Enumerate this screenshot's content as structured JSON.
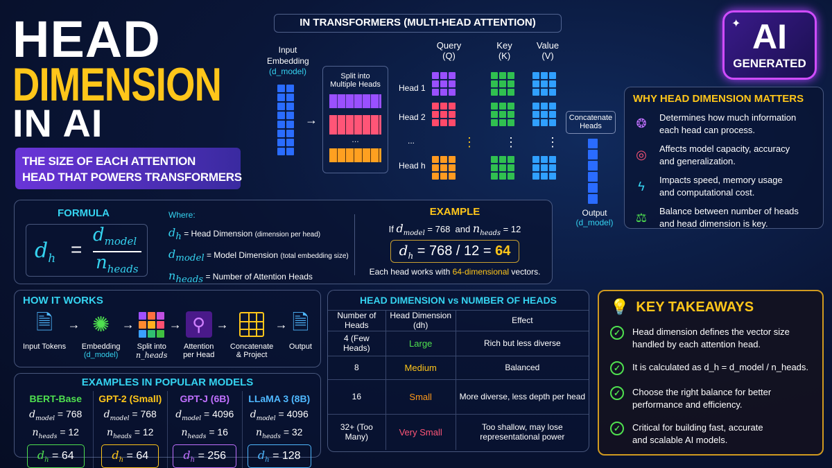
{
  "title": {
    "line1": "HEAD",
    "line2": "DIMENSION",
    "line3": "IN AI",
    "subtitle_line1": "THE SIZE OF EACH ATTENTION",
    "subtitle_line2": "HEAD THAT POWERS TRANSFORMERS"
  },
  "badge": {
    "line1": "AI",
    "line2": "GENERATED"
  },
  "transformer": {
    "header": "IN TRANSFORMERS (MULTI-HEAD ATTENTION)",
    "input_label_1": "Input",
    "input_label_2": "Embedding",
    "input_sub": "(d_model)",
    "split_1": "Split into",
    "split_2": "Multiple Heads",
    "heads": [
      "Head 1",
      "Head 2",
      "...",
      "Head h"
    ],
    "query": "Query",
    "query_sub": "(Q)",
    "key": "Key",
    "key_sub": "(K)",
    "value": "Value",
    "value_sub": "(V)",
    "concat_1": "Concatenate",
    "concat_2": "Heads",
    "output": "Output",
    "output_sub": "(d_model)",
    "ellipsis": "⋮"
  },
  "why": {
    "title": "WHY HEAD DIMENSION MATTERS",
    "items": [
      {
        "icon": "brain-icon",
        "l1": "Determines how much information",
        "l2": "each head can process."
      },
      {
        "icon": "target-icon",
        "l1": "Affects model capacity, accuracy",
        "l2": "and generalization."
      },
      {
        "icon": "lightning-icon",
        "l1": "Impacts speed, memory usage",
        "l2": "and computational cost."
      },
      {
        "icon": "balance-scale-icon",
        "l1": "Balance between number of heads",
        "l2": "and head dimension is key."
      }
    ]
  },
  "formula": {
    "title": "FORMULA",
    "lhs": "d",
    "lhs_sub": "h",
    "eq": "=",
    "num": "d",
    "num_sub": "model",
    "den": "n",
    "den_sub": "heads",
    "where": "Where:",
    "defs": [
      {
        "sym": "d",
        "sub": "h",
        "text": "= Head Dimension",
        "note": "(dimension per head)"
      },
      {
        "sym": "d",
        "sub": "model",
        "text": "= Model Dimension",
        "note": "(total embedding size)"
      },
      {
        "sym": "n",
        "sub": "heads",
        "text": "= Number of Attention Heads",
        "note": ""
      }
    ]
  },
  "example": {
    "title": "EXAMPLE",
    "if": "If",
    "dmodel_val": "= 768",
    "and": "and",
    "nheads_val": "= 12",
    "calc": "= 768 / 12 =",
    "result": "64",
    "note_pre": "Each head works with",
    "note_hl": "64-dimensional",
    "note_post": "vectors."
  },
  "how": {
    "title": "HOW IT WORKS",
    "steps": [
      {
        "l1": "Input Tokens",
        "l2": ""
      },
      {
        "l1": "Embedding",
        "l2": "(d_model)"
      },
      {
        "l1": "Split into",
        "l2": "n_heads"
      },
      {
        "l1": "Attention",
        "l2": "per Head"
      },
      {
        "l1": "Concatenate",
        "l2": "& Project"
      },
      {
        "l1": "Output",
        "l2": ""
      }
    ]
  },
  "models": {
    "title": "EXAMPLES IN POPULAR MODELS",
    "items": [
      {
        "name": "BERT-Base",
        "dmodel": "= 768",
        "nheads": "= 12",
        "dh": "= 64",
        "color": "#4fe04f"
      },
      {
        "name": "GPT-2 (Small)",
        "dmodel": "= 768",
        "nheads": "= 12",
        "dh": "= 64",
        "color": "#ffc61a"
      },
      {
        "name": "GPT-J (6B)",
        "dmodel": "= 4096",
        "nheads": "= 16",
        "dh": "= 256",
        "color": "#c070ff"
      },
      {
        "name": "LLaMA 3 (8B)",
        "dmodel": "= 4096",
        "nheads": "= 32",
        "dh": "= 128",
        "color": "#4fb8ff"
      }
    ]
  },
  "table": {
    "title": "HEAD DIMENSION vs NUMBER OF HEADS",
    "headers": [
      "Number of Heads",
      "Head Dimension (dh)",
      "Effect"
    ],
    "rows": [
      {
        "heads": "4 (Few Heads)",
        "dim": "Large",
        "effect": "Rich but less diverse",
        "color": "#4fe04f"
      },
      {
        "heads": "8",
        "dim": "Medium",
        "effect": "Balanced",
        "color": "#ffc61a"
      },
      {
        "heads": "16",
        "dim": "Small",
        "effect": "More diverse, less depth per head",
        "color": "#ff9a1a"
      },
      {
        "heads": "32+ (Too Many)",
        "dim": "Very Small",
        "effect": "Too shallow, may lose representational power",
        "color": "#ff5577"
      }
    ]
  },
  "takeaways": {
    "title": "KEY TAKEAWAYS",
    "items": [
      {
        "l1": "Head dimension defines the vector size",
        "l2": "handled by each attention head."
      },
      {
        "l1": "It is calculated as d_h = d_model / n_heads.",
        "l2": ""
      },
      {
        "l1": "Choose the right balance for better",
        "l2": "performance and efficiency."
      },
      {
        "l1": "Critical for building fast, accurate",
        "l2": "and scalable AI models."
      }
    ]
  },
  "colors": {
    "accent_yellow": "#ffc61a",
    "accent_cyan": "#35d3f0",
    "purple": "#7b3fe0"
  }
}
